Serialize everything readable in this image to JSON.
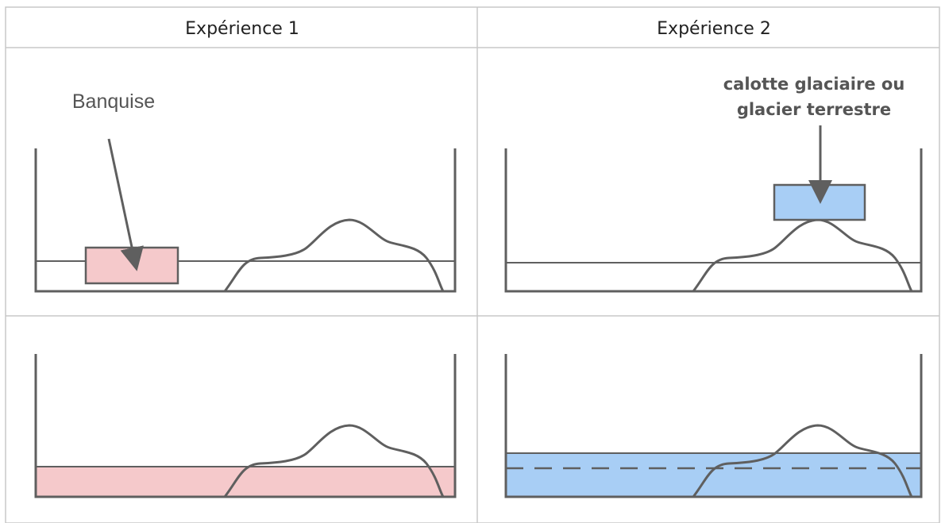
{
  "headers": {
    "experiment1": "Expérience 1",
    "experiment2": "Expérience 2"
  },
  "labels": {
    "sea_ice": "Banquise",
    "ice_sheet_line1": "calotte glaciaire ou",
    "ice_sheet_line2": "glacier terrestre"
  },
  "colors": {
    "pink": "#f5c9cb",
    "blue": "#a8cef5",
    "stroke": "#5f5f5f",
    "grid": "#c8c8c8"
  }
}
